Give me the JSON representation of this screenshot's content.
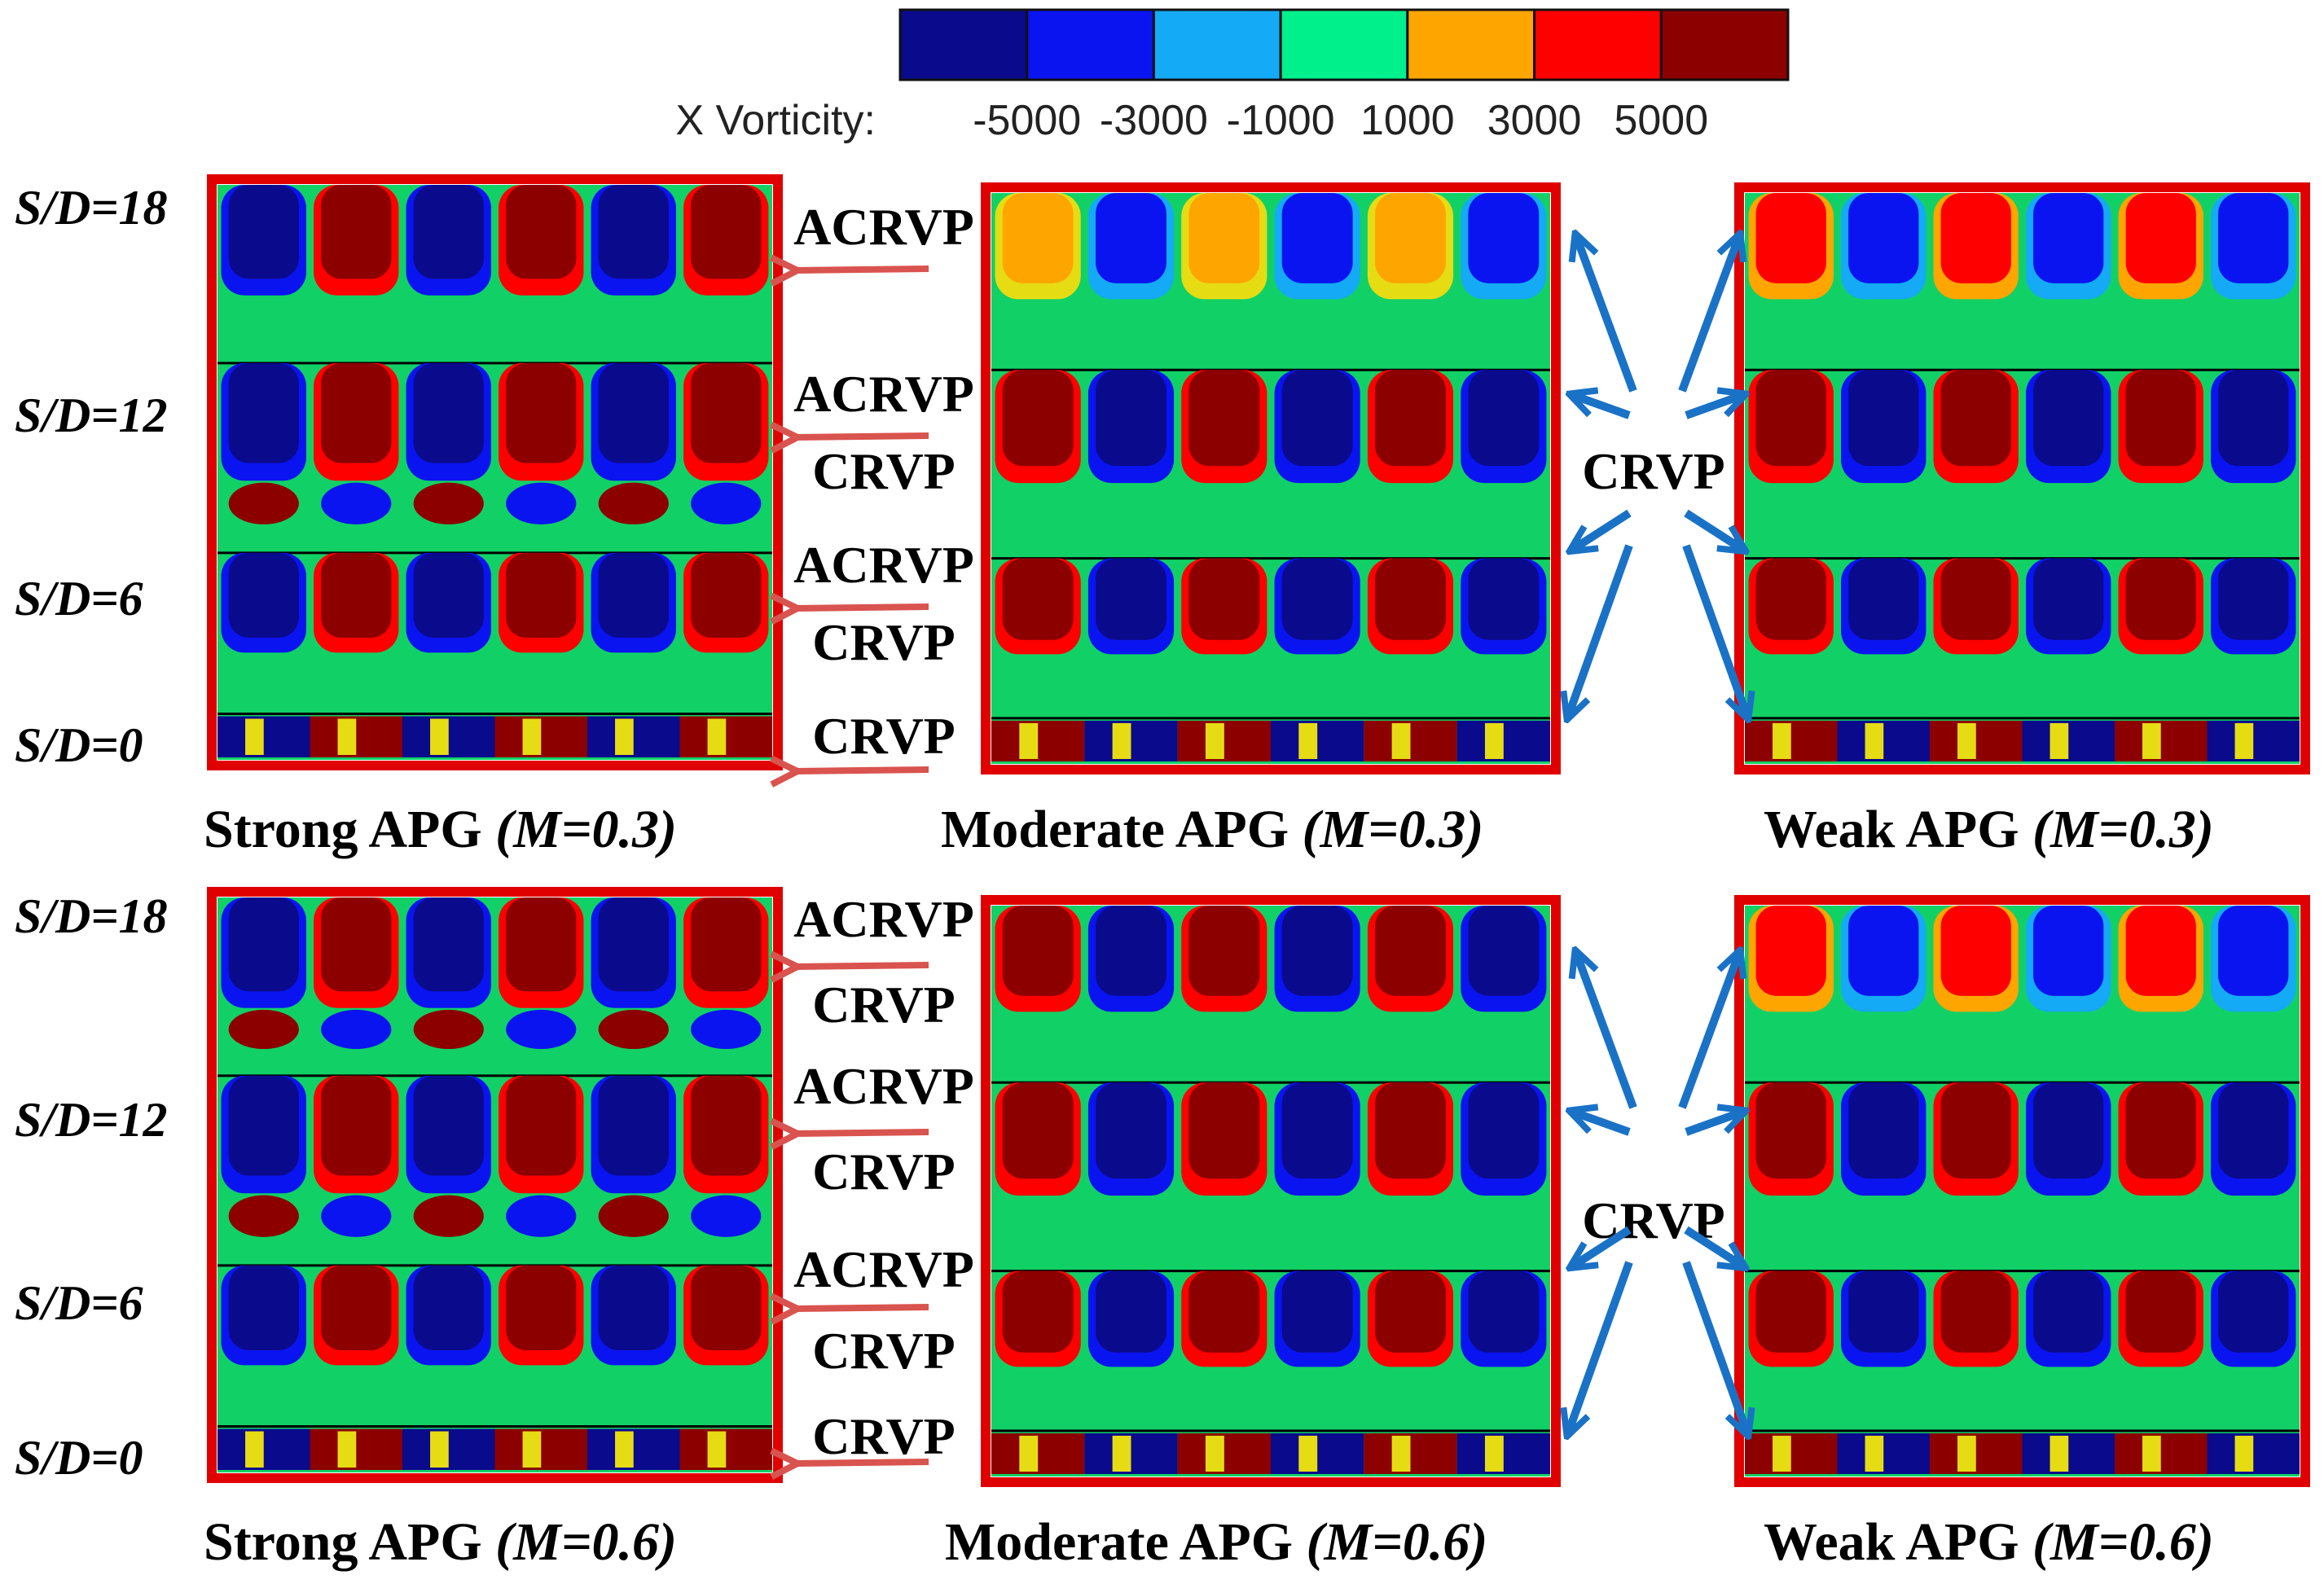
{
  "colorbar": {
    "label": "X Vorticity:",
    "ticks": [
      "-5000",
      "-3000",
      "-1000",
      "1000",
      "3000",
      "5000"
    ],
    "colors": [
      "#0a0a8c",
      "#0a14f0",
      "#14aaf5",
      "#00f08c",
      "#ffa500",
      "#ff0000",
      "#8c0000"
    ]
  },
  "palette": {
    "background_green": "#11d166",
    "frame_red": "#e00000",
    "arrow_red": "#d9534f",
    "arrow_blue": "#1a72c6",
    "yellow": "#e6dc14"
  },
  "row_labels": [
    "S/D=18",
    "S/D=12",
    "S/D=6",
    "S/D=0"
  ],
  "panels": [
    {
      "id": "strong-m03",
      "title": "Strong APG",
      "mach": "(M=0.3)"
    },
    {
      "id": "moderate-m03",
      "title": "Moderate APG",
      "mach": "(M=0.3)"
    },
    {
      "id": "weak-m03",
      "title": "Weak APG",
      "mach": "(M=0.3)"
    },
    {
      "id": "strong-m06",
      "title": "Strong APG",
      "mach": "(M=0.6)"
    },
    {
      "id": "moderate-m06",
      "title": "Moderate APG",
      "mach": "(M=0.6)"
    },
    {
      "id": "weak-m06",
      "title": "Weak APG",
      "mach": "(M=0.6)"
    }
  ],
  "annotations": {
    "top": [
      "ACRVP",
      "ACRVP",
      "CRVP",
      "ACRVP",
      "CRVP",
      "CRVP"
    ],
    "bottom": [
      "ACRVP",
      "CRVP",
      "ACRVP",
      "CRVP",
      "ACRVP",
      "CRVP",
      "CRVP"
    ],
    "center": "CRVP"
  }
}
